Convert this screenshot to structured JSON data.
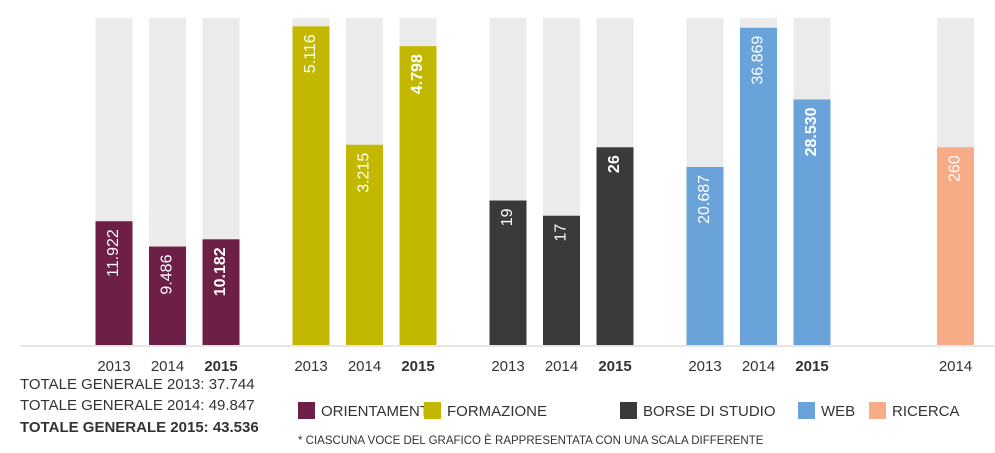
{
  "chart_data": {
    "type": "bar",
    "groups": [
      {
        "name": "ORIENTAMENTO",
        "color": "#6e1f48",
        "ylim": [
          0,
          31500
        ],
        "categories": [
          "2013",
          "2014",
          "2015"
        ],
        "values": [
          11922,
          9486,
          10182
        ],
        "value_labels": [
          "11.922",
          "9.486",
          "10.182"
        ]
      },
      {
        "name": "FORMAZIONE",
        "color": "#c3b800",
        "ylim": [
          0,
          5250
        ],
        "categories": [
          "2013",
          "2014",
          "2015"
        ],
        "values": [
          5116,
          3215,
          4798
        ],
        "value_labels": [
          "5.116",
          "3.215",
          "4.798"
        ]
      },
      {
        "name": "BORSE DI STUDIO",
        "color": "#3a3a3a",
        "ylim": [
          0,
          43
        ],
        "categories": [
          "2013",
          "2014",
          "2015"
        ],
        "values": [
          19,
          17,
          26
        ]
      },
      {
        "name": "WEB",
        "color": "#6aa3d9",
        "ylim": [
          0,
          38000
        ],
        "categories": [
          "2013",
          "2014",
          "2015"
        ],
        "values": [
          20687,
          36869,
          28530
        ],
        "value_labels": [
          "20.687",
          "36.869",
          "28.530"
        ]
      },
      {
        "name": "RICERCA",
        "color": "#f7ab86",
        "ylim": [
          0,
          430
        ],
        "categories": [
          "2014"
        ],
        "values": [
          260
        ]
      }
    ],
    "totals": [
      "TOTALE GENERALE 2013: 37.744",
      "TOTALE GENERALE 2014: 49.847",
      "TOTALE GENERALE 2015: 43.536"
    ],
    "note": "* CIASCUNA VOCE DEL GRAFICO È RAPPRESENTATA CON UNA SCALA DIFFERENTE"
  }
}
